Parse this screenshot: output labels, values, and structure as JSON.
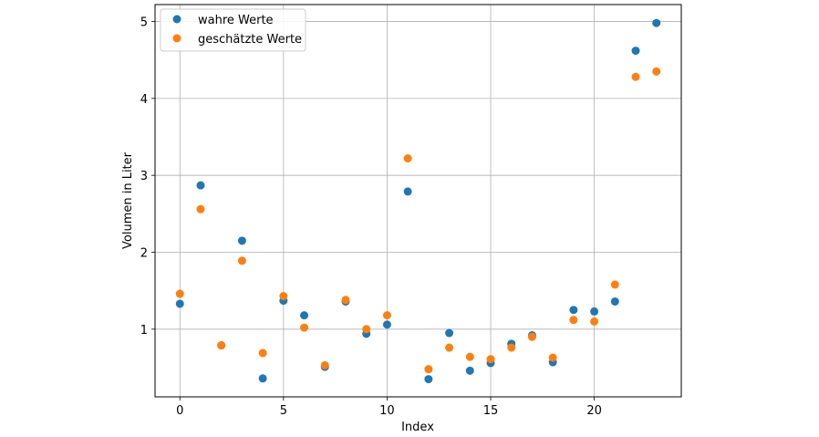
{
  "chart_data": {
    "type": "scatter",
    "xlabel": "Index",
    "ylabel": "Volumen in Liter",
    "xlim": [
      -1.2,
      24.2
    ],
    "ylim": [
      0.12,
      5.22
    ],
    "xticks": [
      0,
      5,
      10,
      15,
      20
    ],
    "yticks": [
      1,
      2,
      3,
      4,
      5
    ],
    "grid": true,
    "legend": "top-left",
    "series": [
      {
        "name": "wahre Werte",
        "color": "#1f77b4",
        "x": [
          0,
          1,
          2,
          3,
          4,
          5,
          6,
          7,
          8,
          9,
          10,
          11,
          12,
          13,
          14,
          15,
          16,
          17,
          18,
          19,
          20,
          21,
          22,
          23
        ],
        "y": [
          1.33,
          2.87,
          0.79,
          2.15,
          0.36,
          1.37,
          1.18,
          0.51,
          1.36,
          0.94,
          1.06,
          2.79,
          0.35,
          0.95,
          0.46,
          0.56,
          0.81,
          0.92,
          0.57,
          1.25,
          1.23,
          1.36,
          4.62,
          4.98
        ]
      },
      {
        "name": "geschätzte Werte",
        "color": "#ff7f0e",
        "x": [
          0,
          1,
          2,
          3,
          4,
          5,
          6,
          7,
          8,
          9,
          10,
          11,
          12,
          13,
          14,
          15,
          16,
          17,
          18,
          19,
          20,
          21,
          22,
          23
        ],
        "y": [
          1.46,
          2.56,
          0.79,
          1.89,
          0.69,
          1.43,
          1.02,
          0.53,
          1.38,
          1.0,
          1.18,
          3.22,
          0.48,
          0.76,
          0.64,
          0.61,
          0.76,
          0.9,
          0.63,
          1.12,
          1.1,
          1.58,
          4.28,
          4.35
        ]
      }
    ]
  }
}
